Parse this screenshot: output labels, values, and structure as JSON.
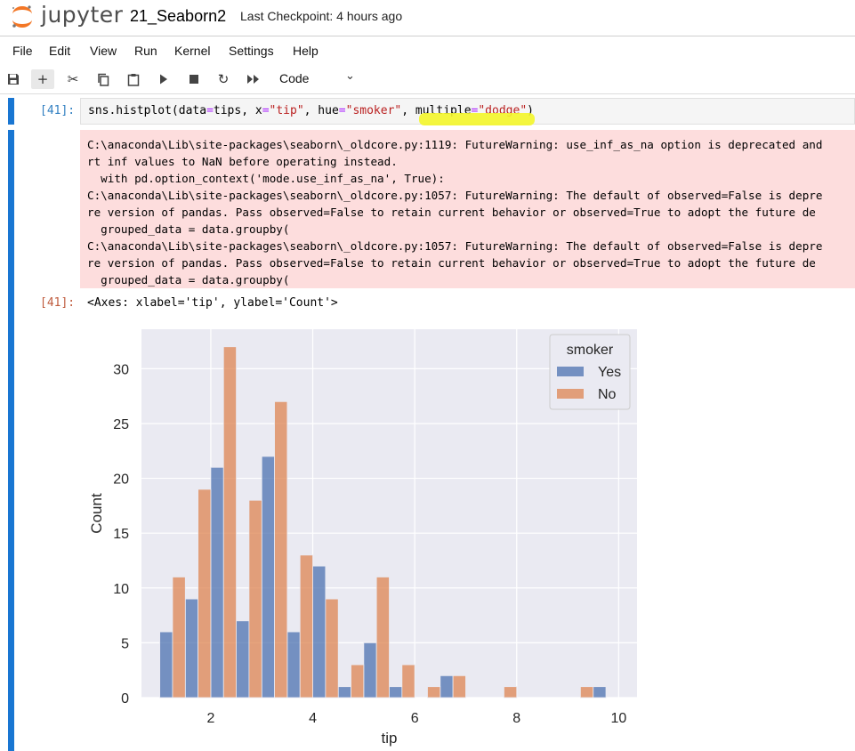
{
  "header": {
    "logo_text": "jupyter",
    "notebook_title": "21_Seaborn2",
    "checkpoint": "Last Checkpoint: 4 hours ago"
  },
  "menu": [
    "File",
    "Edit",
    "View",
    "Run",
    "Kernel",
    "Settings",
    "Help"
  ],
  "toolbar": {
    "cell_type": "Code",
    "icons": [
      "save-icon",
      "add-icon",
      "cut-icon",
      "copy-icon",
      "paste-icon",
      "run-icon",
      "stop-icon",
      "restart-icon",
      "run-all-icon"
    ]
  },
  "cell": {
    "in_prompt": "[41]:",
    "out_prompt": "[41]:",
    "code": {
      "p1": "sns.histplot(data",
      "eq1": "=",
      "p2": "tips, x",
      "eq2": "=",
      "s1": "\"tip\"",
      "p3": ", hue",
      "eq3": "=",
      "s2": "\"smoker\"",
      "p4": ", multiple",
      "eq4": "=",
      "s3": "\"dodge\"",
      "p5": ")"
    },
    "stderr_lines": [
      "C:\\anaconda\\Lib\\site-packages\\seaborn\\_oldcore.py:1119: FutureWarning: use_inf_as_na option is deprecated and",
      "rt inf values to NaN before operating instead.",
      "  with pd.option_context('mode.use_inf_as_na', True):",
      "C:\\anaconda\\Lib\\site-packages\\seaborn\\_oldcore.py:1057: FutureWarning: The default of observed=False is depre",
      "re version of pandas. Pass observed=False to retain current behavior or observed=True to adopt the future de",
      "  grouped_data = data.groupby(",
      "C:\\anaconda\\Lib\\site-packages\\seaborn\\_oldcore.py:1057: FutureWarning: The default of observed=False is depre",
      "re version of pandas. Pass observed=False to retain current behavior or observed=True to adopt the future de",
      "  grouped_data = data.groupby("
    ],
    "output_text": "<Axes: xlabel='tip', ylabel='Count'>"
  },
  "chart_data": {
    "type": "bar",
    "title": "",
    "xlabel": "tip",
    "ylabel": "Count",
    "xlim": [
      0.64,
      10.36
    ],
    "ylim": [
      0,
      33.6
    ],
    "xticks": [
      2,
      4,
      6,
      8,
      10
    ],
    "yticks": [
      0,
      5,
      10,
      15,
      20,
      25,
      30
    ],
    "grid": true,
    "legend": {
      "title": "smoker",
      "placement": "top-right"
    },
    "bin_edges": [
      1.0,
      1.5,
      2.0,
      2.5,
      3.0,
      3.5,
      4.0,
      4.5,
      5.0,
      5.5,
      6.0,
      6.5,
      7.0,
      7.5,
      8.0,
      8.5,
      9.0,
      9.5,
      10.0
    ],
    "series": [
      {
        "name": "Yes",
        "color": "#4c72b0",
        "values": [
          6,
          9,
          21,
          7,
          22,
          6,
          12,
          1,
          5,
          1,
          0,
          2,
          0,
          0,
          0,
          0,
          0,
          1
        ]
      },
      {
        "name": "No",
        "color": "#dd8452",
        "values": [
          11,
          19,
          32,
          18,
          27,
          13,
          9,
          3,
          11,
          3,
          1,
          2,
          0,
          1,
          0,
          0,
          1,
          0
        ]
      }
    ]
  }
}
